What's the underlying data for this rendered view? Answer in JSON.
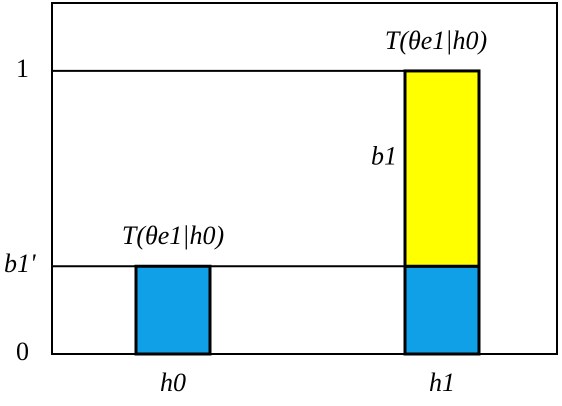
{
  "chart_data": {
    "type": "bar",
    "stacked": true,
    "categories": [
      "h0",
      "h1"
    ],
    "series": [
      {
        "color": "#10a0e8",
        "values": [
          0.31,
          0.31
        ]
      },
      {
        "color": "#ffff00",
        "values": [
          null,
          0.69
        ]
      }
    ],
    "annotations": [
      "T(θe1|h0)",
      "T(θe1|h0)",
      "b1"
    ],
    "ylim": [
      0,
      1.24
    ],
    "yticks": [
      0,
      {
        "value": 0.31,
        "label": "b1'"
      },
      1
    ],
    "grid": true
  }
}
